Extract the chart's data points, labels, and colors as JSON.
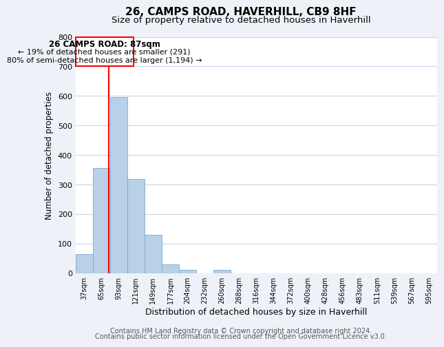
{
  "title": "26, CAMPS ROAD, HAVERHILL, CB9 8HF",
  "subtitle": "Size of property relative to detached houses in Haverhill",
  "xlabel": "Distribution of detached houses by size in Haverhill",
  "ylabel": "Number of detached properties",
  "ylim": [
    0,
    800
  ],
  "yticks": [
    0,
    100,
    200,
    300,
    400,
    500,
    600,
    700,
    800
  ],
  "bar_labels": [
    "37sqm",
    "65sqm",
    "93sqm",
    "121sqm",
    "149sqm",
    "177sqm",
    "204sqm",
    "232sqm",
    "260sqm",
    "288sqm",
    "316sqm",
    "344sqm",
    "372sqm",
    "400sqm",
    "428sqm",
    "456sqm",
    "483sqm",
    "511sqm",
    "539sqm",
    "567sqm",
    "595sqm"
  ],
  "bar_heights": [
    65,
    357,
    595,
    318,
    130,
    30,
    10,
    0,
    10,
    0,
    0,
    0,
    0,
    0,
    0,
    0,
    0,
    0,
    0,
    0,
    0
  ],
  "bar_color": "#b8d0e8",
  "bar_edge_color": "#7aaac8",
  "red_line_x": 1.42,
  "annotation_text_line1": "26 CAMPS ROAD: 87sqm",
  "annotation_text_line2": "← 19% of detached houses are smaller (291)",
  "annotation_text_line3": "80% of semi-detached houses are larger (1,194) →",
  "footer_line1": "Contains HM Land Registry data © Crown copyright and database right 2024.",
  "footer_line2": "Contains public sector information licensed under the Open Government Licence v3.0.",
  "background_color": "#eef2f8",
  "plot_bg_color": "#ffffff",
  "grid_color": "#c8d4e8",
  "title_fontsize": 11,
  "subtitle_fontsize": 9.5,
  "ylabel_fontsize": 8.5,
  "xlabel_fontsize": 9,
  "footer_fontsize": 7
}
